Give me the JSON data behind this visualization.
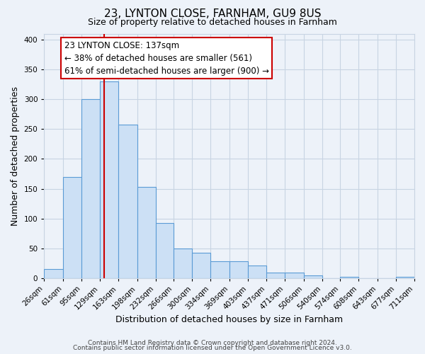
{
  "title1": "23, LYNTON CLOSE, FARNHAM, GU9 8US",
  "title2": "Size of property relative to detached houses in Farnham",
  "xlabel": "Distribution of detached houses by size in Farnham",
  "ylabel": "Number of detached properties",
  "bin_labels": [
    "26sqm",
    "61sqm",
    "95sqm",
    "129sqm",
    "163sqm",
    "198sqm",
    "232sqm",
    "266sqm",
    "300sqm",
    "334sqm",
    "369sqm",
    "403sqm",
    "437sqm",
    "471sqm",
    "506sqm",
    "540sqm",
    "574sqm",
    "608sqm",
    "643sqm",
    "677sqm",
    "711sqm"
  ],
  "bin_edges": [
    26,
    61,
    95,
    129,
    163,
    198,
    232,
    266,
    300,
    334,
    369,
    403,
    437,
    471,
    506,
    540,
    574,
    608,
    643,
    677,
    711
  ],
  "bar_heights": [
    15,
    170,
    300,
    330,
    258,
    153,
    93,
    50,
    43,
    29,
    28,
    22,
    10,
    10,
    5,
    0,
    3,
    0,
    0,
    3
  ],
  "bar_fill_color": "#cce0f5",
  "bar_edge_color": "#5b9bd5",
  "grid_color": "#c8d4e3",
  "background_color": "#edf2f9",
  "red_line_x": 137,
  "red_line_color": "#cc0000",
  "annotation_line1": "23 LYNTON CLOSE: 137sqm",
  "annotation_line2": "← 38% of detached houses are smaller (561)",
  "annotation_line3": "61% of semi-detached houses are larger (900) →",
  "annotation_box_edge": "#cc0000",
  "annotation_box_face": "white",
  "ylim": [
    0,
    410
  ],
  "yticks": [
    0,
    50,
    100,
    150,
    200,
    250,
    300,
    350,
    400
  ],
  "footer1": "Contains HM Land Registry data © Crown copyright and database right 2024.",
  "footer2": "Contains public sector information licensed under the Open Government Licence v3.0.",
  "title1_fontsize": 11,
  "title2_fontsize": 9,
  "xlabel_fontsize": 9,
  "ylabel_fontsize": 9,
  "tick_fontsize": 7.5,
  "annotation_fontsize": 8.5,
  "footer_fontsize": 6.5
}
